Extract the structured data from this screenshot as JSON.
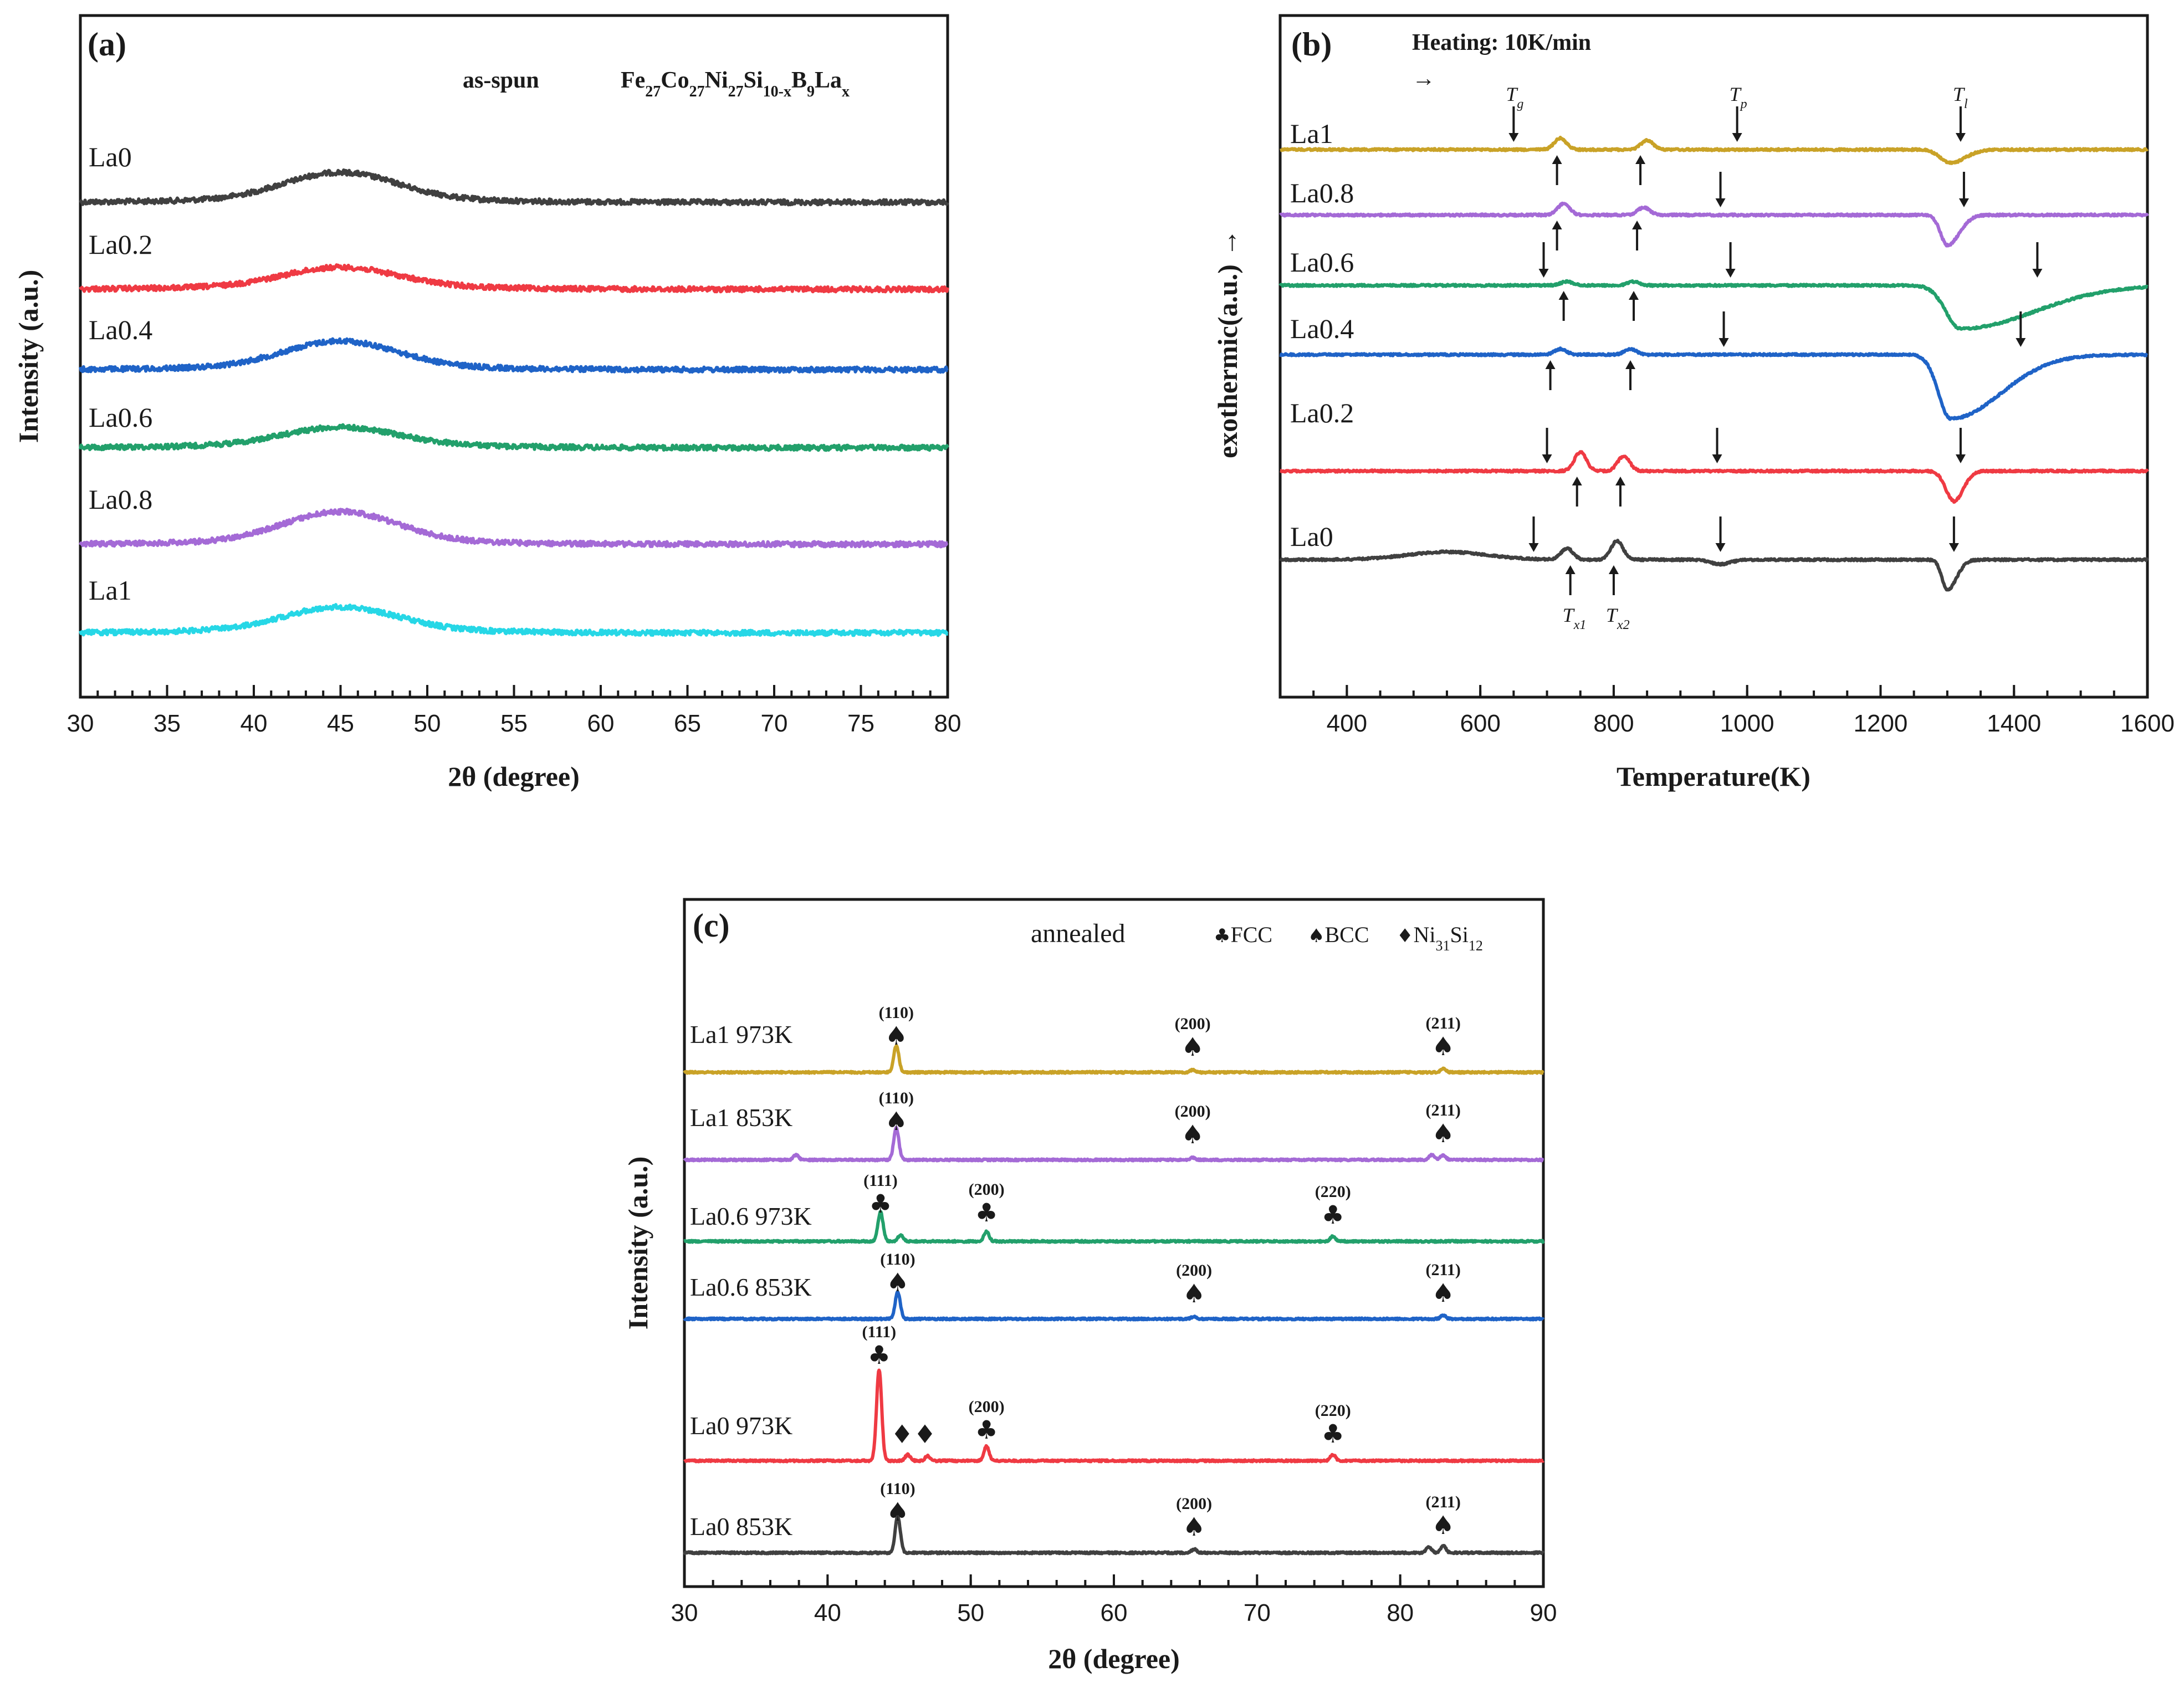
{
  "chart_data": [
    {
      "panel": "(a)",
      "type": "line",
      "xlabel": "2θ (degree)",
      "ylabel": "Intensity (a.u.)",
      "xlim": [
        30,
        80
      ],
      "xticks": [
        "30",
        "35",
        "40",
        "45",
        "50",
        "55",
        "60",
        "65",
        "70",
        "75",
        "80"
      ],
      "header_left": "as-spun",
      "header_formula": {
        "parts": [
          {
            "t": "Fe"
          },
          {
            "t": "27",
            "sub": true
          },
          {
            "t": "Co"
          },
          {
            "t": "27",
            "sub": true
          },
          {
            "t": "Ni"
          },
          {
            "t": "27",
            "sub": true
          },
          {
            "t": "Si"
          },
          {
            "t": "10-x",
            "sub": true
          },
          {
            "t": "B"
          },
          {
            "t": "9",
            "sub": true
          },
          {
            "t": "La"
          },
          {
            "t": "x",
            "sub": true
          }
        ]
      },
      "series": [
        {
          "name": "La0",
          "color": "#404040",
          "offset": 5,
          "hump": 1.0
        },
        {
          "name": "La0.2",
          "color": "#ef3a43",
          "offset": 4,
          "hump": 0.7
        },
        {
          "name": "La0.4",
          "color": "#1f63c7",
          "offset": 3,
          "hump": 0.95
        },
        {
          "name": "La0.6",
          "color": "#22a06b",
          "offset": 2,
          "hump": 0.65
        },
        {
          "name": "La0.8",
          "color": "#a46ad6",
          "offset": 1,
          "hump": 1.1
        },
        {
          "name": "La1",
          "color": "#26d7e6",
          "offset": 0,
          "hump": 0.85
        }
      ]
    },
    {
      "panel": "(b)",
      "type": "line",
      "xlabel": "Temperature(K)",
      "ylabel": "exothermic(a.u.)",
      "ylabel_arrow": "→",
      "xlim": [
        300,
        1600
      ],
      "xticks": [
        "400",
        "600",
        "800",
        "1000",
        "1200",
        "1400",
        "1600"
      ],
      "header": "Heating:  10K/min",
      "header_arrow": "→",
      "markers": {
        "Tg": "T",
        "Tg_sub": "g",
        "Tp": "T",
        "Tp_sub": "p",
        "Tl": "T",
        "Tl_sub": "l",
        "Tx1": "T",
        "Tx1_sub": "x1",
        "Tx2": "T",
        "Tx2_sub": "x2"
      },
      "series": [
        {
          "name": "La1",
          "color": "#c9a227",
          "offset": 5,
          "peaks": [
            [
              720,
              0.6
            ],
            [
              850,
              0.5
            ]
          ],
          "dip": [
            1305,
            -0.7,
            15,
            22
          ]
        },
        {
          "name": "La0.8",
          "color": "#a46ad6",
          "offset": 4,
          "peaks": [
            [
              725,
              0.6
            ],
            [
              845,
              0.4
            ]
          ],
          "dip": [
            1300,
            -1.6,
            10,
            18
          ]
        },
        {
          "name": "La0.6",
          "color": "#22a06b",
          "offset": 3,
          "peaks": [
            [
              730,
              0.2
            ],
            [
              830,
              0.2
            ]
          ],
          "dip": [
            1320,
            -2.3,
            22,
            110
          ]
        },
        {
          "name": "La0.4",
          "color": "#1f63c7",
          "offset": 2,
          "peaks": [
            [
              720,
              0.3
            ],
            [
              825,
              0.3
            ]
          ],
          "dip": [
            1305,
            -3.4,
            18,
            75
          ]
        },
        {
          "name": "La0.2",
          "color": "#ef3a43",
          "offset": 1,
          "peaks": [
            [
              750,
              1.0
            ],
            [
              815,
              0.8
            ]
          ],
          "dip": [
            1310,
            -1.6,
            12,
            14
          ]
        },
        {
          "name": "La0",
          "color": "#404040",
          "offset": 0,
          "peaks": [
            [
              730,
              0.6
            ],
            [
              805,
              1.0
            ]
          ],
          "dip": [
            1300,
            -1.6,
            8,
            14
          ]
        }
      ],
      "arrows": [
        {
          "x": 650,
          "s": 5,
          "dir": "down",
          "lab": "Tg"
        },
        {
          "x": 715,
          "s": 5,
          "dir": "up"
        },
        {
          "x": 840,
          "s": 5,
          "dir": "up"
        },
        {
          "x": 985,
          "s": 5,
          "dir": "down",
          "lab": "Tp"
        },
        {
          "x": 1320,
          "s": 5,
          "dir": "down",
          "lab": "Tl"
        },
        {
          "x": 715,
          "s": 4,
          "dir": "up"
        },
        {
          "x": 835,
          "s": 4,
          "dir": "up"
        },
        {
          "x": 960,
          "s": 4,
          "dir": "down"
        },
        {
          "x": 1325,
          "s": 4,
          "dir": "down"
        },
        {
          "x": 695,
          "s": 3,
          "dir": "down"
        },
        {
          "x": 725,
          "s": 3,
          "dir": "up"
        },
        {
          "x": 830,
          "s": 3,
          "dir": "up"
        },
        {
          "x": 975,
          "s": 3,
          "dir": "down"
        },
        {
          "x": 1435,
          "s": 3,
          "dir": "down"
        },
        {
          "x": 705,
          "s": 2,
          "dir": "up"
        },
        {
          "x": 825,
          "s": 2,
          "dir": "up"
        },
        {
          "x": 965,
          "s": 2,
          "dir": "down"
        },
        {
          "x": 1410,
          "s": 2,
          "dir": "down"
        },
        {
          "x": 700,
          "s": 1,
          "dir": "down"
        },
        {
          "x": 745,
          "s": 1,
          "dir": "up"
        },
        {
          "x": 810,
          "s": 1,
          "dir": "up"
        },
        {
          "x": 955,
          "s": 1,
          "dir": "down"
        },
        {
          "x": 1320,
          "s": 1,
          "dir": "down"
        },
        {
          "x": 680,
          "s": 0,
          "dir": "down"
        },
        {
          "x": 735,
          "s": 0,
          "dir": "up",
          "lab": "Tx1"
        },
        {
          "x": 800,
          "s": 0,
          "dir": "up",
          "lab": "Tx2"
        },
        {
          "x": 960,
          "s": 0,
          "dir": "down"
        },
        {
          "x": 1310,
          "s": 0,
          "dir": "down"
        }
      ]
    },
    {
      "panel": "(c)",
      "type": "line",
      "xlabel": "2θ (degree)",
      "ylabel": "Intensity (a.u.)",
      "xlim": [
        30,
        90
      ],
      "xticks": [
        "30",
        "40",
        "50",
        "60",
        "70",
        "80",
        "90"
      ],
      "header": "annealed",
      "legend": [
        {
          "symbol": "♣",
          "label": "FCC"
        },
        {
          "symbol": "♠",
          "label": "BCC"
        },
        {
          "symbol": "♦",
          "label": "Ni",
          "sub": "31",
          "rest": "Si",
          "sub2": "12"
        }
      ],
      "series": [
        {
          "name": "La1 973K",
          "color": "#c9a227",
          "offset": 5,
          "peaks": [
            [
              44.8,
              2.2
            ],
            [
              65.5,
              0.2
            ],
            [
              83.0,
              0.3
            ]
          ]
        },
        {
          "name": "La1 853K",
          "color": "#a46ad6",
          "offset": 4,
          "peaks": [
            [
              37.8,
              0.4
            ],
            [
              44.8,
              2.6
            ],
            [
              65.5,
              0.2
            ],
            [
              82.2,
              0.4
            ],
            [
              83.0,
              0.4
            ]
          ]
        },
        {
          "name": "La0.6 973K",
          "color": "#22a06b",
          "offset": 3,
          "peaks": [
            [
              43.7,
              2.4
            ],
            [
              45.1,
              0.5
            ],
            [
              51.1,
              0.8
            ],
            [
              75.3,
              0.4
            ]
          ]
        },
        {
          "name": "La0.6 853K",
          "color": "#1f63c7",
          "offset": 2,
          "peaks": [
            [
              44.9,
              2.2
            ],
            [
              65.6,
              0.2
            ],
            [
              83.0,
              0.3
            ]
          ]
        },
        {
          "name": "La0 973K",
          "color": "#ef3a43",
          "offset": 1,
          "peaks": [
            [
              43.6,
              7.5
            ],
            [
              45.6,
              0.5
            ],
            [
              47.0,
              0.4
            ],
            [
              51.1,
              1.2
            ],
            [
              75.3,
              0.5
            ]
          ]
        },
        {
          "name": "La0 853K",
          "color": "#404040",
          "offset": 0,
          "peaks": [
            [
              44.9,
              3.0
            ],
            [
              65.6,
              0.3
            ],
            [
              82.0,
              0.5
            ],
            [
              83.0,
              0.6
            ]
          ]
        }
      ],
      "annotations": [
        {
          "x": 44.8,
          "s": 5,
          "sym": "♠",
          "hkl": "(110)"
        },
        {
          "x": 65.5,
          "s": 5,
          "sym": "♠",
          "hkl": "(200)"
        },
        {
          "x": 83.0,
          "s": 5,
          "sym": "♠",
          "hkl": "(211)"
        },
        {
          "x": 44.8,
          "s": 4,
          "sym": "♠",
          "hkl": "(110)"
        },
        {
          "x": 65.5,
          "s": 4,
          "sym": "♠",
          "hkl": "(200)"
        },
        {
          "x": 83.0,
          "s": 4,
          "sym": "♠",
          "hkl": "(211)"
        },
        {
          "x": 43.7,
          "s": 3,
          "sym": "♣",
          "hkl": "(111)"
        },
        {
          "x": 51.1,
          "s": 3,
          "sym": "♣",
          "hkl": "(200)"
        },
        {
          "x": 75.3,
          "s": 3,
          "sym": "♣",
          "hkl": "(220)"
        },
        {
          "x": 44.9,
          "s": 2,
          "sym": "♠",
          "hkl": "(110)"
        },
        {
          "x": 65.6,
          "s": 2,
          "sym": "♠",
          "hkl": "(200)"
        },
        {
          "x": 83.0,
          "s": 2,
          "sym": "♠",
          "hkl": "(211)"
        },
        {
          "x": 43.6,
          "s": 1,
          "sym": "♣",
          "hkl": "(111)"
        },
        {
          "x": 46.0,
          "s": 1,
          "sym": "♦♦",
          "hkl": ""
        },
        {
          "x": 51.1,
          "s": 1,
          "sym": "♣",
          "hkl": "(200)"
        },
        {
          "x": 75.3,
          "s": 1,
          "sym": "♣",
          "hkl": "(220)"
        },
        {
          "x": 44.9,
          "s": 0,
          "sym": "♠",
          "hkl": "(110)"
        },
        {
          "x": 65.6,
          "s": 0,
          "sym": "♠",
          "hkl": "(200)"
        },
        {
          "x": 83.0,
          "s": 0,
          "sym": "♠",
          "hkl": "(211)"
        }
      ]
    }
  ]
}
